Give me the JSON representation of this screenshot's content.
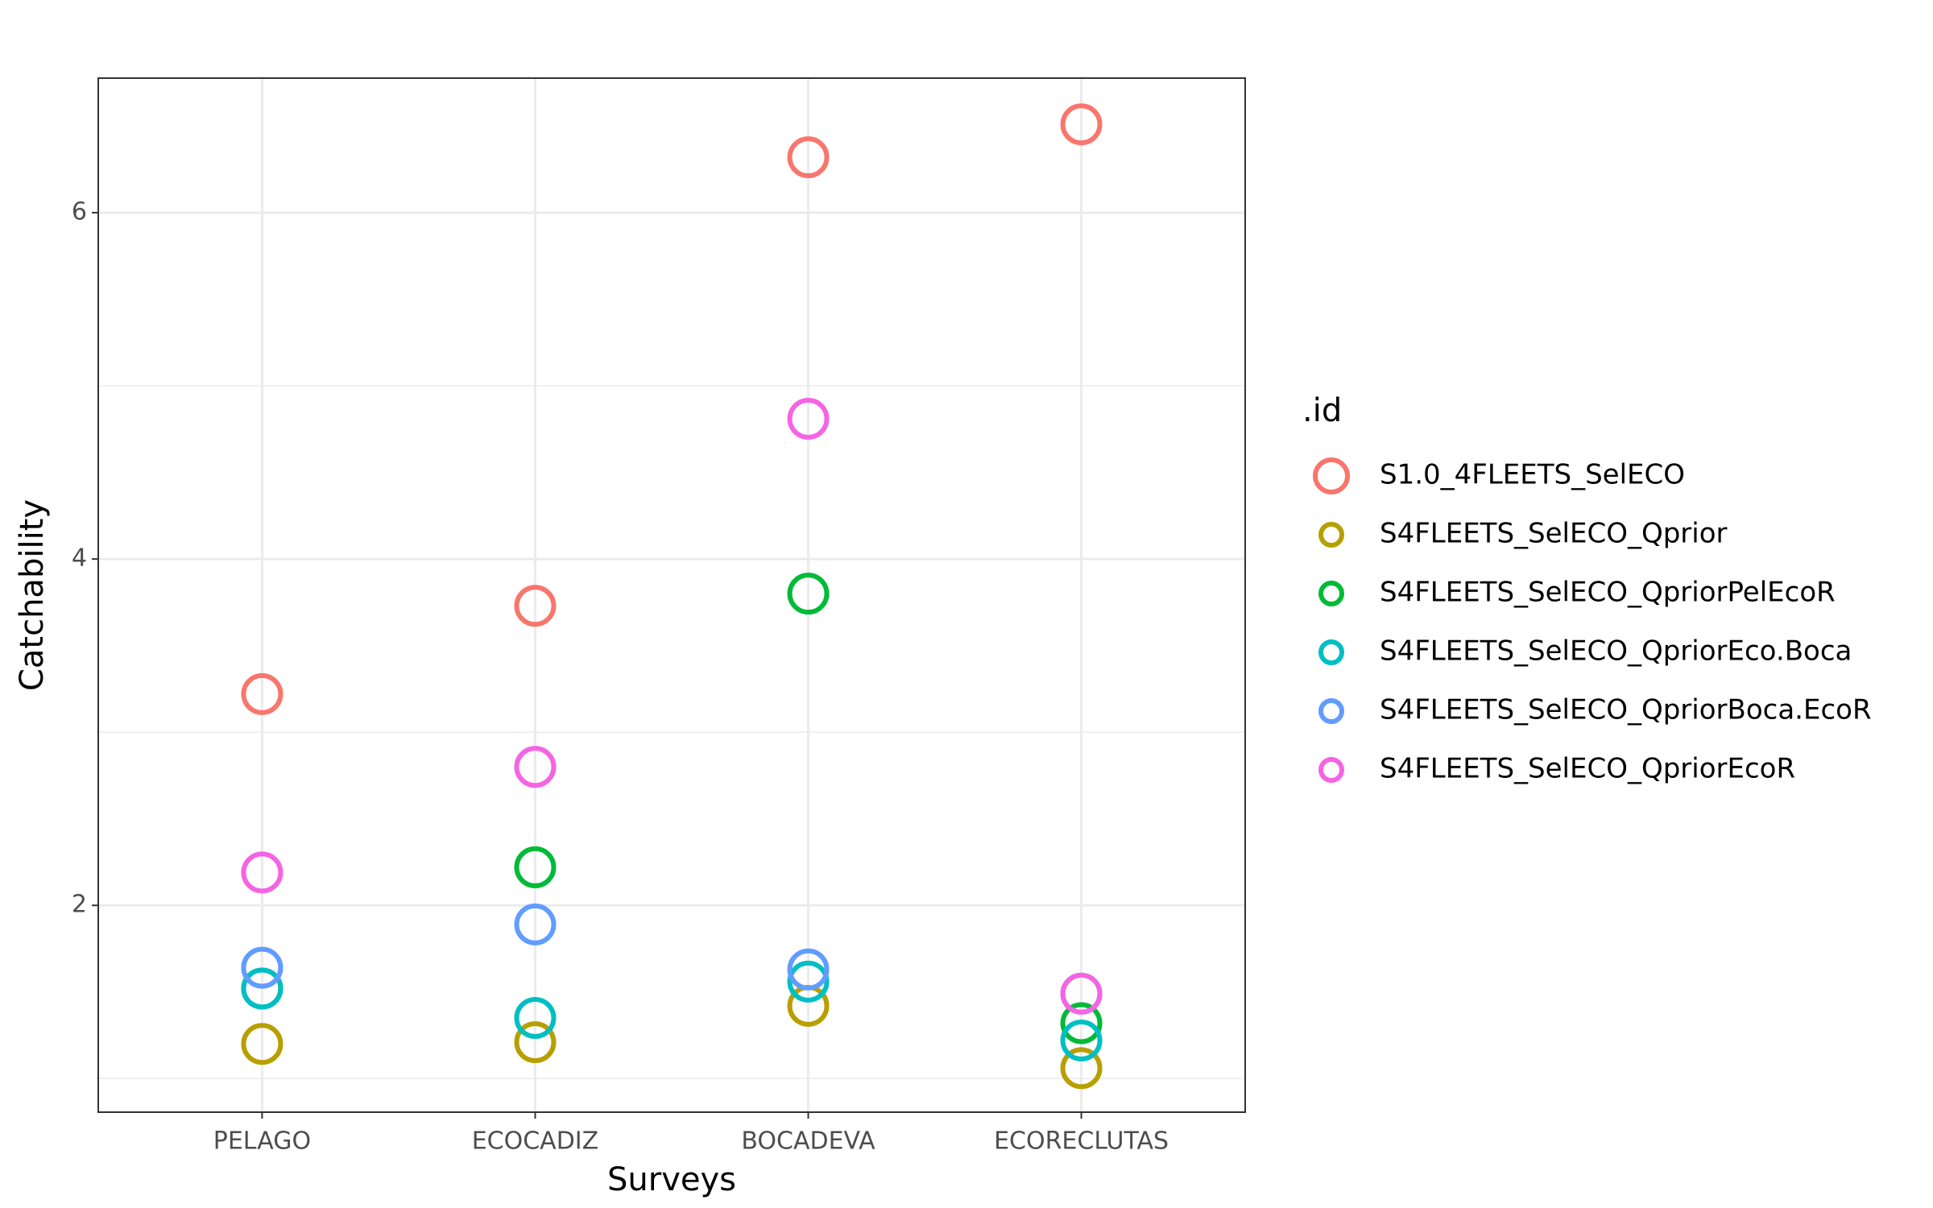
{
  "chart_data": {
    "type": "scatter",
    "x_label": "Surveys",
    "y_label": "Catchability",
    "legend_title": ".id",
    "categories": [
      "PELAGO",
      "ECOCADIZ",
      "BOCADEVA",
      "ECORECLUTAS"
    ],
    "series": [
      {
        "name": "S1.0_4FLEETS_SelECO",
        "color": "#f8766d",
        "values": [
          3.22,
          3.73,
          6.32,
          6.51
        ]
      },
      {
        "name": "S4FLEETS_SelECO_Qprior",
        "color": "#b79f00",
        "values": [
          1.2,
          1.21,
          1.42,
          1.06
        ]
      },
      {
        "name": "S4FLEETS_SelECO_QpriorPelEcoR",
        "color": "#00ba38",
        "values": [
          1.52,
          2.22,
          3.8,
          1.32
        ]
      },
      {
        "name": "S4FLEETS_SelECO_QpriorEco.Boca",
        "color": "#00bfc4",
        "values": [
          1.52,
          1.35,
          1.56,
          1.22
        ]
      },
      {
        "name": "S4FLEETS_SelECO_QpriorBoca.EcoR",
        "color": "#619cff",
        "values": [
          1.64,
          1.89,
          1.63,
          1.49
        ]
      },
      {
        "name": "S4FLEETS_SelECO_QpriorEcoR",
        "color": "#f564e3",
        "values": [
          2.19,
          2.8,
          4.81,
          1.49
        ]
      }
    ],
    "ylim": [
      0.806,
      6.777
    ],
    "yticks": [
      2,
      4,
      6
    ],
    "minor_yticks": [
      1,
      3,
      5
    ],
    "grid": true,
    "legend": "right"
  }
}
